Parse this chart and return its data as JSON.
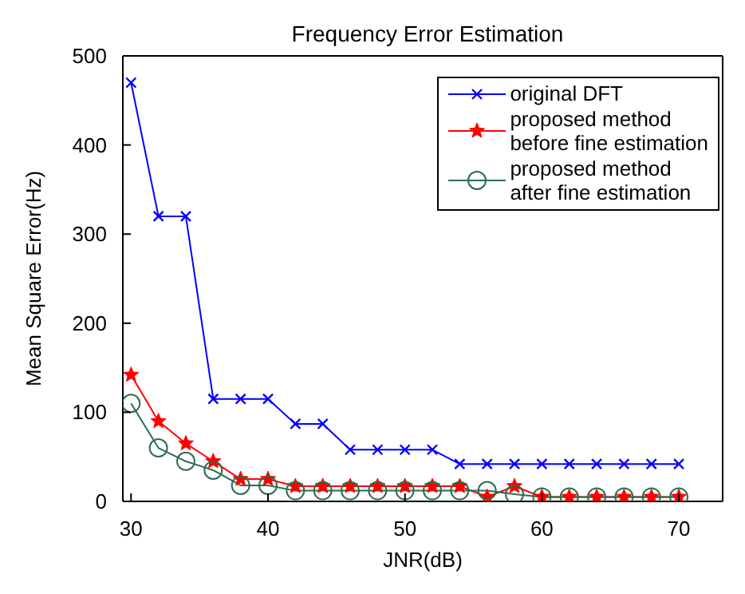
{
  "chart_data": {
    "type": "line",
    "title": "Frequency Error Estimation",
    "xlabel": "JNR(dB)",
    "ylabel": "Mean Square Error(Hz)",
    "x": [
      30,
      32,
      34,
      36,
      38,
      40,
      42,
      44,
      46,
      48,
      50,
      52,
      54,
      56,
      58,
      60,
      62,
      64,
      66,
      68,
      70
    ],
    "series": [
      {
        "name": "original DFT",
        "color": "#0000ff",
        "marker": "cross",
        "values": [
          470,
          320,
          320,
          115,
          115,
          115,
          87,
          87,
          58,
          58,
          58,
          58,
          42,
          42,
          42,
          42,
          42,
          42,
          42,
          42,
          42
        ]
      },
      {
        "name": "proposed method\nbefore fine estimation",
        "color": "#ff0000",
        "marker": "star",
        "values": [
          142,
          90,
          65,
          45,
          25,
          25,
          17,
          17,
          17,
          17,
          17,
          17,
          17,
          5,
          17,
          5,
          5,
          5,
          5,
          5,
          5
        ]
      },
      {
        "name": "proposed method\nafter fine estimation",
        "color": "#2e6b4f",
        "marker": "circle",
        "values": [
          110,
          60,
          45,
          35,
          18,
          18,
          12,
          12,
          12,
          12,
          12,
          12,
          12,
          12,
          8,
          5,
          5,
          5,
          5,
          5,
          5
        ]
      }
    ],
    "xlim": [
      29.4,
      73.2
    ],
    "xticks": [
      30,
      40,
      50,
      60,
      70
    ],
    "ylim": [
      0,
      500
    ],
    "yticks": [
      0,
      100,
      200,
      300,
      400,
      500
    ],
    "grid": false,
    "legend": "top right"
  }
}
